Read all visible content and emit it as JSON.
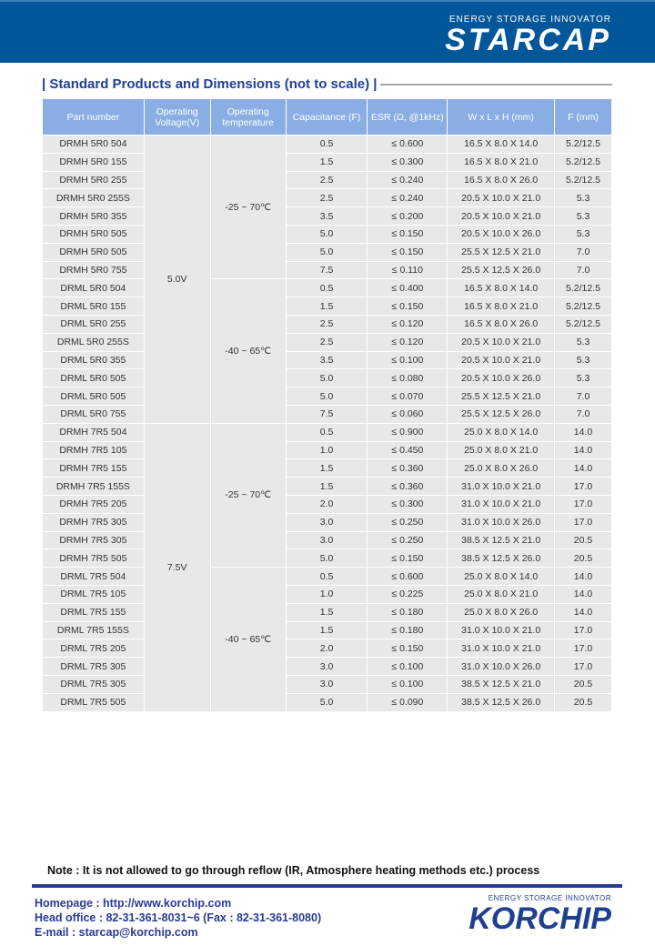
{
  "brand": {
    "tagline": "ENERGY STORAGE INNOVATOR",
    "name": "STARCAP"
  },
  "section_title": "| Standard Products and Dimensions (not to scale) |",
  "table": {
    "headers": [
      "Part number",
      "Operating Voltage(V)",
      "Operating temperature",
      "Capacitance (F)",
      "ESR (Ω, @1kHz)",
      "W x L  x H (mm)",
      "F (mm)"
    ],
    "groups": [
      {
        "voltage": "5.0V",
        "temps": [
          {
            "range": "-25 ~ 70℃",
            "rows": [
              [
                "DRMH 5R0 504",
                "0.5",
                "≤ 0.600",
                "16.5 X  8.0 X 14.0",
                "5.2/12.5"
              ],
              [
                "DRMH 5R0 155",
                "1.5",
                "≤ 0.300",
                "16.5 X  8.0 X 21.0",
                "5.2/12.5"
              ],
              [
                "DRMH 5R0 255",
                "2.5",
                "≤ 0.240",
                "16.5 X  8.0 X 26.0",
                "5.2/12.5"
              ],
              [
                "DRMH 5R0 255S",
                "2.5",
                "≤ 0.240",
                "20.5 X 10.0 X 21.0",
                "5.3"
              ],
              [
                "DRMH 5R0 355",
                "3.5",
                "≤ 0.200",
                "20.5 X 10.0 X 21.0",
                "5.3"
              ],
              [
                "DRMH 5R0 505",
                "5.0",
                "≤ 0.150",
                "20.5 X 10.0 X 26.0",
                "5.3"
              ],
              [
                "DRMH 5R0 505",
                "5.0",
                "≤ 0.150",
                "25.5 X 12.5 X 21.0",
                "7.0"
              ],
              [
                "DRMH 5R0 755",
                "7.5",
                "≤ 0.110",
                "25.5 X 12.5 X 26.0",
                "7.0"
              ]
            ]
          },
          {
            "range": "-40 ~ 65℃",
            "rows": [
              [
                "DRML 5R0 504",
                "0.5",
                "≤ 0.400",
                "16.5 X  8.0 X 14.0",
                "5.2/12.5"
              ],
              [
                "DRML 5R0 155",
                "1.5",
                "≤ 0.150",
                "16.5 X  8.0 X 21.0",
                "5.2/12.5"
              ],
              [
                "DRML 5R0 255",
                "2.5",
                "≤ 0.120",
                "16.5 X  8.0 X 26.0",
                "5.2/12.5"
              ],
              [
                "DRML 5R0 255S",
                "2.5",
                "≤ 0.120",
                "20.5 X 10.0 X 21.0",
                "5.3"
              ],
              [
                "DRML 5R0 355",
                "3.5",
                "≤ 0.100",
                "20.5 X 10.0 X 21.0",
                "5.3"
              ],
              [
                "DRML 5R0 505",
                "5.0",
                "≤ 0.080",
                "20.5 X 10.0 X 26.0",
                "5.3"
              ],
              [
                "DRML 5R0 505",
                "5.0",
                "≤ 0.070",
                "25.5 X 12.5 X 21.0",
                "7.0"
              ],
              [
                "DRML 5R0 755",
                "7.5",
                "≤ 0.060",
                "25.5 X 12.5 X 26.0",
                "7.0"
              ]
            ]
          }
        ]
      },
      {
        "voltage": "7.5V",
        "temps": [
          {
            "range": "-25 ~ 70℃",
            "rows": [
              [
                "DRMH 7R5 504",
                "0.5",
                "≤ 0.900",
                "25.0 X  8.0 X 14.0",
                "14.0"
              ],
              [
                "DRMH 7R5 105",
                "1.0",
                "≤ 0.450",
                "25.0 X  8.0 X 21.0",
                "14.0"
              ],
              [
                "DRMH 7R5 155",
                "1.5",
                "≤ 0.360",
                "25.0 X  8.0 X 26.0",
                "14.0"
              ],
              [
                "DRMH 7R5 155S",
                "1.5",
                "≤ 0.360",
                "31.0 X 10.0 X 21.0",
                "17.0"
              ],
              [
                "DRMH 7R5 205",
                "2.0",
                "≤ 0.300",
                "31.0 X 10.0 X 21.0",
                "17.0"
              ],
              [
                "DRMH 7R5 305",
                "3.0",
                "≤ 0.250",
                "31.0 X 10.0 X 26.0",
                "17.0"
              ],
              [
                "DRMH 7R5 305",
                "3.0",
                "≤ 0.250",
                "38.5 X 12.5 X 21.0",
                "20.5"
              ],
              [
                "DRMH 7R5 505",
                "5.0",
                "≤ 0.150",
                "38.5 X 12.5 X 26.0",
                "20.5"
              ]
            ]
          },
          {
            "range": "-40 ~ 65℃",
            "rows": [
              [
                "DRML 7R5 504",
                "0.5",
                "≤ 0.600",
                "25.0 X  8.0 X 14.0",
                "14.0"
              ],
              [
                "DRML 7R5 105",
                "1.0",
                "≤ 0.225",
                "25.0 X  8.0 X 21.0",
                "14.0"
              ],
              [
                "DRML 7R5 155",
                "1.5",
                "≤ 0.180",
                "25.0 X  8.0 X 26.0",
                "14.0"
              ],
              [
                "DRML 7R5 155S",
                "1.5",
                "≤ 0.180",
                "31.0 X 10.0 X 21.0",
                "17.0"
              ],
              [
                "DRML 7R5 205",
                "2.0",
                "≤ 0.150",
                "31.0 X 10.0 X 21.0",
                "17.0"
              ],
              [
                "DRML 7R5 305",
                "3.0",
                "≤ 0.100",
                "31.0 X 10.0 X 26.0",
                "17.0"
              ],
              [
                "DRML 7R5 305",
                "3.0",
                "≤ 0.100",
                "38.5 X 12.5 X 21.0",
                "20.5"
              ],
              [
                "DRML 7R5 505",
                "5.0",
                "≤ 0.090",
                "38.5 X 12.5 X 26.0",
                "20.5"
              ]
            ]
          }
        ]
      }
    ]
  },
  "note": "Note : It is not allowed to go through reflow (IR, Atmosphere heating methods etc.) process",
  "contact": {
    "homepage": "Homepage : http://www.korchip.com",
    "office": "Head office : 82-31-361-8031~6 (Fax : 82-31-361-8080)",
    "email": "E-mail : starcap@korchip.com"
  },
  "footer_brand": {
    "tagline": "ENERGY STORAGE INNOVATOR",
    "name": "KORCHIP"
  }
}
